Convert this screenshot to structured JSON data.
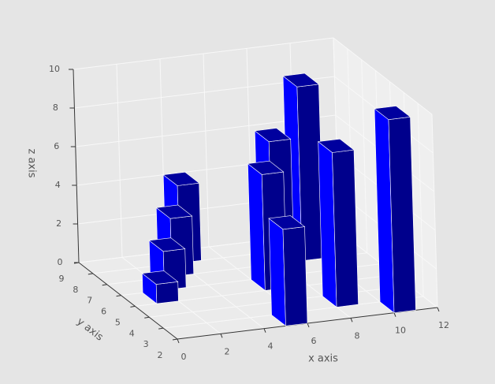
{
  "chart_data": {
    "type": "bar3d",
    "x_label": "x axis",
    "y_label": "y axis",
    "z_label": "z axis",
    "x": [
      1,
      2,
      3,
      4,
      5,
      6,
      7,
      8,
      9,
      10
    ],
    "y": [
      5,
      6,
      7,
      8,
      2,
      5,
      6,
      3,
      7,
      2
    ],
    "values": [
      1,
      2,
      3,
      4,
      5,
      6,
      7,
      8,
      9,
      10
    ],
    "color": "#0000ff",
    "xlim": [
      0,
      12
    ],
    "xticks": [
      0,
      2,
      4,
      6,
      8,
      10,
      12
    ],
    "ylim": [
      2,
      9
    ],
    "yticks": [
      2,
      3,
      4,
      5,
      6,
      7,
      8,
      9
    ],
    "zlim": [
      0,
      10
    ],
    "zticks": [
      0,
      2,
      4,
      6,
      8,
      10
    ],
    "grid": true
  }
}
